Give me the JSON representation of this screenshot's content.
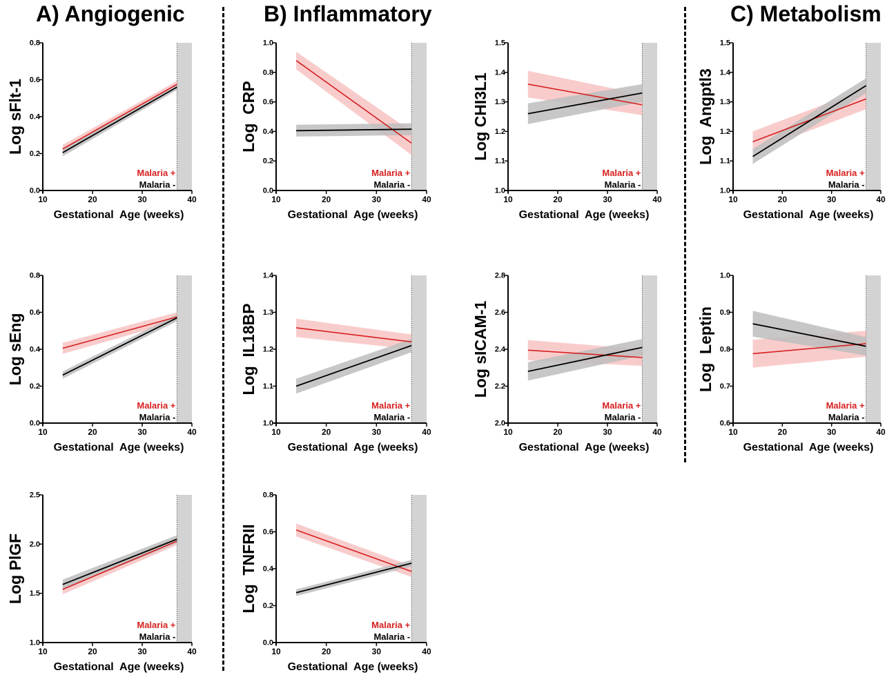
{
  "sections": {
    "a_title": "A) Angiogenic",
    "b_title": "B) Inflammatory",
    "c_title": "C) Metabolism"
  },
  "colors": {
    "malaria_positive": "#d62020",
    "malaria_positive_band": "#f6b7b7",
    "malaria_negative": "#000000",
    "malaria_negative_band": "#bdbdbd",
    "term_shading": "#d3d3d3"
  },
  "chart_data": [
    {
      "type": "line",
      "title": "",
      "xlabel": "Gestational  Age (weeks)",
      "ylabel": "Log sFlt-1",
      "xlim": [
        10,
        40
      ],
      "ylim": [
        0.0,
        0.8
      ],
      "xticks": [
        10,
        20,
        30,
        40
      ],
      "xtick_labels": [
        "10",
        "20",
        "30",
        "40"
      ],
      "yticks": [
        0.0,
        0.2,
        0.4,
        0.6,
        0.8
      ],
      "ytick_labels": [
        "0.0",
        "0.2",
        "0.4",
        "0.6",
        "0.8"
      ],
      "shaded_x_range": [
        37,
        40
      ],
      "legend": [
        "Malaria +",
        "Malaria -"
      ],
      "legend_position": "bottom-right",
      "series": [
        {
          "name": "Malaria +",
          "x": [
            14,
            37
          ],
          "y": [
            0.225,
            0.575
          ],
          "ci_halfwidth": [
            0.022,
            0.018
          ]
        },
        {
          "name": "Malaria -",
          "x": [
            14,
            37
          ],
          "y": [
            0.205,
            0.56
          ],
          "ci_halfwidth": [
            0.02,
            0.016
          ]
        }
      ]
    },
    {
      "type": "line",
      "title": "",
      "xlabel": "Gestational  Age (weeks)",
      "ylabel": "Log sEng",
      "xlim": [
        10,
        40
      ],
      "ylim": [
        0.0,
        0.8
      ],
      "xticks": [
        10,
        20,
        30,
        40
      ],
      "xtick_labels": [
        "10",
        "20",
        "30",
        "40"
      ],
      "yticks": [
        0.0,
        0.2,
        0.4,
        0.6,
        0.8
      ],
      "ytick_labels": [
        "0.0",
        "0.2",
        "0.4",
        "0.6",
        "0.8"
      ],
      "shaded_x_range": [
        37,
        40
      ],
      "legend": [
        "Malaria +",
        "Malaria -"
      ],
      "legend_position": "bottom-right",
      "series": [
        {
          "name": "Malaria +",
          "x": [
            14,
            37
          ],
          "y": [
            0.405,
            0.575
          ],
          "ci_halfwidth": [
            0.03,
            0.025
          ]
        },
        {
          "name": "Malaria -",
          "x": [
            14,
            37
          ],
          "y": [
            0.26,
            0.57
          ],
          "ci_halfwidth": [
            0.02,
            0.018
          ]
        }
      ]
    },
    {
      "type": "line",
      "title": "",
      "xlabel": "Gestational  Age (weeks)",
      "ylabel": "Log PlGF",
      "xlim": [
        10,
        40
      ],
      "ylim": [
        1.0,
        2.5
      ],
      "xticks": [
        10,
        20,
        30,
        40
      ],
      "xtick_labels": [
        "10",
        "20",
        "30",
        "40"
      ],
      "yticks": [
        1.0,
        1.5,
        2.0,
        2.5
      ],
      "ytick_labels": [
        "1.0",
        "1.5",
        "2.0",
        "2.5"
      ],
      "shaded_x_range": [
        37,
        40
      ],
      "legend": [
        "Malaria +",
        "Malaria -"
      ],
      "legend_position": "bottom-right",
      "series": [
        {
          "name": "Malaria +",
          "x": [
            14,
            37
          ],
          "y": [
            1.54,
            2.03
          ],
          "ci_halfwidth": [
            0.05,
            0.04
          ]
        },
        {
          "name": "Malaria -",
          "x": [
            14,
            37
          ],
          "y": [
            1.59,
            2.05
          ],
          "ci_halfwidth": [
            0.05,
            0.04
          ]
        }
      ]
    },
    {
      "type": "line",
      "title": "",
      "xlabel": "Gestational  Age (weeks)",
      "ylabel": "Log  CRP",
      "xlim": [
        10,
        40
      ],
      "ylim": [
        0.0,
        1.0
      ],
      "xticks": [
        10,
        20,
        30,
        40
      ],
      "xtick_labels": [
        "10",
        "20",
        "30",
        "40"
      ],
      "yticks": [
        0.0,
        0.2,
        0.4,
        0.6,
        0.8,
        1.0
      ],
      "ytick_labels": [
        "0.0",
        "0.2",
        "0.4",
        "0.6",
        "0.8",
        "1.0"
      ],
      "shaded_x_range": [
        37,
        40
      ],
      "legend": [
        "Malaria +",
        "Malaria -"
      ],
      "legend_position": "bottom-right",
      "series": [
        {
          "name": "Malaria +",
          "x": [
            14,
            37
          ],
          "y": [
            0.88,
            0.32
          ],
          "ci_halfwidth": [
            0.06,
            0.08
          ]
        },
        {
          "name": "Malaria -",
          "x": [
            14,
            37
          ],
          "y": [
            0.405,
            0.415
          ],
          "ci_halfwidth": [
            0.04,
            0.04
          ]
        }
      ]
    },
    {
      "type": "line",
      "title": "",
      "xlabel": "Gestational  Age (weeks)",
      "ylabel": "Log  IL18BP",
      "xlim": [
        10,
        40
      ],
      "ylim": [
        1.0,
        1.4
      ],
      "xticks": [
        10,
        20,
        30,
        40
      ],
      "xtick_labels": [
        "10",
        "20",
        "30",
        "40"
      ],
      "yticks": [
        1.0,
        1.1,
        1.2,
        1.3,
        1.4
      ],
      "ytick_labels": [
        "1.0",
        "1.1",
        "1.2",
        "1.3",
        "1.4"
      ],
      "shaded_x_range": [
        37,
        40
      ],
      "legend": [
        "Malaria +",
        "Malaria -"
      ],
      "legend_position": "bottom-right",
      "series": [
        {
          "name": "Malaria +",
          "x": [
            14,
            37
          ],
          "y": [
            1.258,
            1.22
          ],
          "ci_halfwidth": [
            0.025,
            0.02
          ]
        },
        {
          "name": "Malaria -",
          "x": [
            14,
            37
          ],
          "y": [
            1.1,
            1.21
          ],
          "ci_halfwidth": [
            0.02,
            0.018
          ]
        }
      ]
    },
    {
      "type": "line",
      "title": "",
      "xlabel": "Gestational  Age (weeks)",
      "ylabel": "Log  TNFRII",
      "xlim": [
        10,
        40
      ],
      "ylim": [
        0.0,
        0.8
      ],
      "xticks": [
        10,
        20,
        30,
        40
      ],
      "xtick_labels": [
        "10",
        "20",
        "30",
        "40"
      ],
      "yticks": [
        0.0,
        0.2,
        0.4,
        0.6,
        0.8
      ],
      "ytick_labels": [
        "0.0",
        "0.2",
        "0.4",
        "0.6",
        "0.8"
      ],
      "shaded_x_range": [
        37,
        40
      ],
      "legend": [
        "Malaria +",
        "Malaria -"
      ],
      "legend_position": "bottom-right",
      "series": [
        {
          "name": "Malaria +",
          "x": [
            14,
            37
          ],
          "y": [
            0.61,
            0.385
          ],
          "ci_halfwidth": [
            0.035,
            0.03
          ]
        },
        {
          "name": "Malaria -",
          "x": [
            14,
            37
          ],
          "y": [
            0.27,
            0.43
          ],
          "ci_halfwidth": [
            0.018,
            0.018
          ]
        }
      ]
    },
    {
      "type": "line",
      "title": "",
      "xlabel": "Gestational  Age (weeks)",
      "ylabel": "Log CHI3L1",
      "xlim": [
        10,
        40
      ],
      "ylim": [
        1.0,
        1.5
      ],
      "xticks": [
        10,
        20,
        30,
        40
      ],
      "xtick_labels": [
        "10",
        "20",
        "30",
        "40"
      ],
      "yticks": [
        1.0,
        1.1,
        1.2,
        1.3,
        1.4,
        1.5
      ],
      "ytick_labels": [
        "1.0",
        "1.1",
        "1.2",
        "1.3",
        "1.4",
        "1.5"
      ],
      "shaded_x_range": [
        37,
        40
      ],
      "legend": [
        "Malaria +",
        "Malaria -"
      ],
      "legend_position": "bottom-right",
      "series": [
        {
          "name": "Malaria +",
          "x": [
            14,
            37
          ],
          "y": [
            1.36,
            1.29
          ],
          "ci_halfwidth": [
            0.045,
            0.035
          ]
        },
        {
          "name": "Malaria -",
          "x": [
            14,
            37
          ],
          "y": [
            1.26,
            1.33
          ],
          "ci_halfwidth": [
            0.035,
            0.03
          ]
        }
      ]
    },
    {
      "type": "line",
      "title": "",
      "xlabel": "Gestational  Age (weeks)",
      "ylabel": "Log sICAM-1",
      "xlim": [
        10,
        40
      ],
      "ylim": [
        2.0,
        2.8
      ],
      "xticks": [
        10,
        20,
        30,
        40
      ],
      "xtick_labels": [
        "10",
        "20",
        "30",
        "40"
      ],
      "yticks": [
        2.0,
        2.2,
        2.4,
        2.6,
        2.8
      ],
      "ytick_labels": [
        "2.0",
        "2.2",
        "2.4",
        "2.6",
        "2.8"
      ],
      "shaded_x_range": [
        37,
        40
      ],
      "legend": [
        "Malaria +",
        "Malaria -"
      ],
      "legend_position": "bottom-right",
      "series": [
        {
          "name": "Malaria +",
          "x": [
            14,
            37
          ],
          "y": [
            2.395,
            2.355
          ],
          "ci_halfwidth": [
            0.055,
            0.045
          ]
        },
        {
          "name": "Malaria -",
          "x": [
            14,
            37
          ],
          "y": [
            2.28,
            2.41
          ],
          "ci_halfwidth": [
            0.05,
            0.045
          ]
        }
      ]
    },
    {
      "type": "line",
      "title": "",
      "xlabel": "Gestational  Age (weeks)",
      "ylabel": "Log  Angptl3",
      "xlim": [
        10,
        40
      ],
      "ylim": [
        1.0,
        1.5
      ],
      "xticks": [
        10,
        20,
        30,
        40
      ],
      "xtick_labels": [
        "10",
        "20",
        "30",
        "40"
      ],
      "yticks": [
        1.0,
        1.1,
        1.2,
        1.3,
        1.4,
        1.5
      ],
      "ytick_labels": [
        "1.0",
        "1.1",
        "1.2",
        "1.3",
        "1.4",
        "1.5"
      ],
      "shaded_x_range": [
        37,
        40
      ],
      "legend": [
        "Malaria +",
        "Malaria -"
      ],
      "legend_position": "bottom-right",
      "series": [
        {
          "name": "Malaria +",
          "x": [
            14,
            37
          ],
          "y": [
            1.165,
            1.31
          ],
          "ci_halfwidth": [
            0.035,
            0.035
          ]
        },
        {
          "name": "Malaria -",
          "x": [
            14,
            37
          ],
          "y": [
            1.115,
            1.355
          ],
          "ci_halfwidth": [
            0.025,
            0.025
          ]
        }
      ]
    },
    {
      "type": "line",
      "title": "",
      "xlabel": "Gestational  Age (weeks)",
      "ylabel": "Log  Leptin",
      "xlim": [
        10,
        40
      ],
      "ylim": [
        0.6,
        1.0
      ],
      "xticks": [
        10,
        20,
        30,
        40
      ],
      "xtick_labels": [
        "10",
        "20",
        "30",
        "40"
      ],
      "yticks": [
        0.6,
        0.7,
        0.8,
        0.9,
        1.0
      ],
      "ytick_labels": [
        "0.6",
        "0.7",
        "0.8",
        "0.9",
        "1.0"
      ],
      "shaded_x_range": [
        37,
        40
      ],
      "legend": [
        "Malaria +",
        "Malaria -"
      ],
      "legend_position": "bottom-right",
      "series": [
        {
          "name": "Malaria +",
          "x": [
            14,
            37
          ],
          "y": [
            0.788,
            0.815
          ],
          "ci_halfwidth": [
            0.038,
            0.035
          ]
        },
        {
          "name": "Malaria -",
          "x": [
            14,
            37
          ],
          "y": [
            0.869,
            0.808
          ],
          "ci_halfwidth": [
            0.035,
            0.025
          ]
        }
      ]
    }
  ]
}
